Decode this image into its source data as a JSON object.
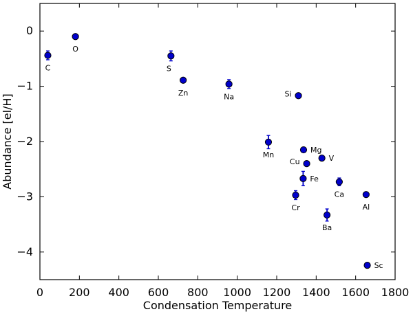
{
  "chart_data": {
    "type": "scatter",
    "title": "",
    "xlabel": "Condensation Temperature",
    "ylabel": "Abundance [el/H]",
    "xlim": [
      0,
      1800
    ],
    "ylim": [
      -4.5,
      0.5
    ],
    "xticks": [
      0,
      200,
      400,
      600,
      800,
      1000,
      1200,
      1400,
      1600,
      1800
    ],
    "yticks": [
      0,
      -1,
      -2,
      -3,
      -4
    ],
    "grid": false,
    "marker_color": "#0000cc",
    "points": [
      {
        "label": "C",
        "x": 40,
        "y": -0.44,
        "err": 0.08,
        "label_pos": "below"
      },
      {
        "label": "O",
        "x": 180,
        "y": -0.1,
        "err": 0.03,
        "label_pos": "below"
      },
      {
        "label": "S",
        "x": 664,
        "y": -0.45,
        "err": 0.09,
        "label_pos": "below-left"
      },
      {
        "label": "Zn",
        "x": 726,
        "y": -0.89,
        "err": 0.04,
        "label_pos": "below"
      },
      {
        "label": "Na",
        "x": 958,
        "y": -0.96,
        "err": 0.08,
        "label_pos": "below"
      },
      {
        "label": "Si",
        "x": 1310,
        "y": -1.17,
        "err": 0.03,
        "label_pos": "left"
      },
      {
        "label": "Mn",
        "x": 1158,
        "y": -2.01,
        "err": 0.12,
        "label_pos": "below"
      },
      {
        "label": "Mg",
        "x": 1336,
        "y": -2.15,
        "err": 0.03,
        "label_pos": "right"
      },
      {
        "label": "V",
        "x": 1429,
        "y": -2.3,
        "err": 0.03,
        "label_pos": "right"
      },
      {
        "label": "Cu",
        "x": 1352,
        "y": -2.4,
        "err": 0.03,
        "label_pos": "left"
      },
      {
        "label": "Fe",
        "x": 1334,
        "y": -2.67,
        "err": 0.13,
        "label_pos": "right"
      },
      {
        "label": "Ca",
        "x": 1517,
        "y": -2.73,
        "err": 0.07,
        "label_pos": "below"
      },
      {
        "label": "Cr",
        "x": 1296,
        "y": -2.97,
        "err": 0.08,
        "label_pos": "below"
      },
      {
        "label": "Al",
        "x": 1653,
        "y": -2.96,
        "err": 0.03,
        "label_pos": "below"
      },
      {
        "label": "Ba",
        "x": 1455,
        "y": -3.33,
        "err": 0.11,
        "label_pos": "below"
      },
      {
        "label": "Sc",
        "x": 1659,
        "y": -4.24,
        "err": 0.02,
        "label_pos": "right"
      }
    ]
  }
}
